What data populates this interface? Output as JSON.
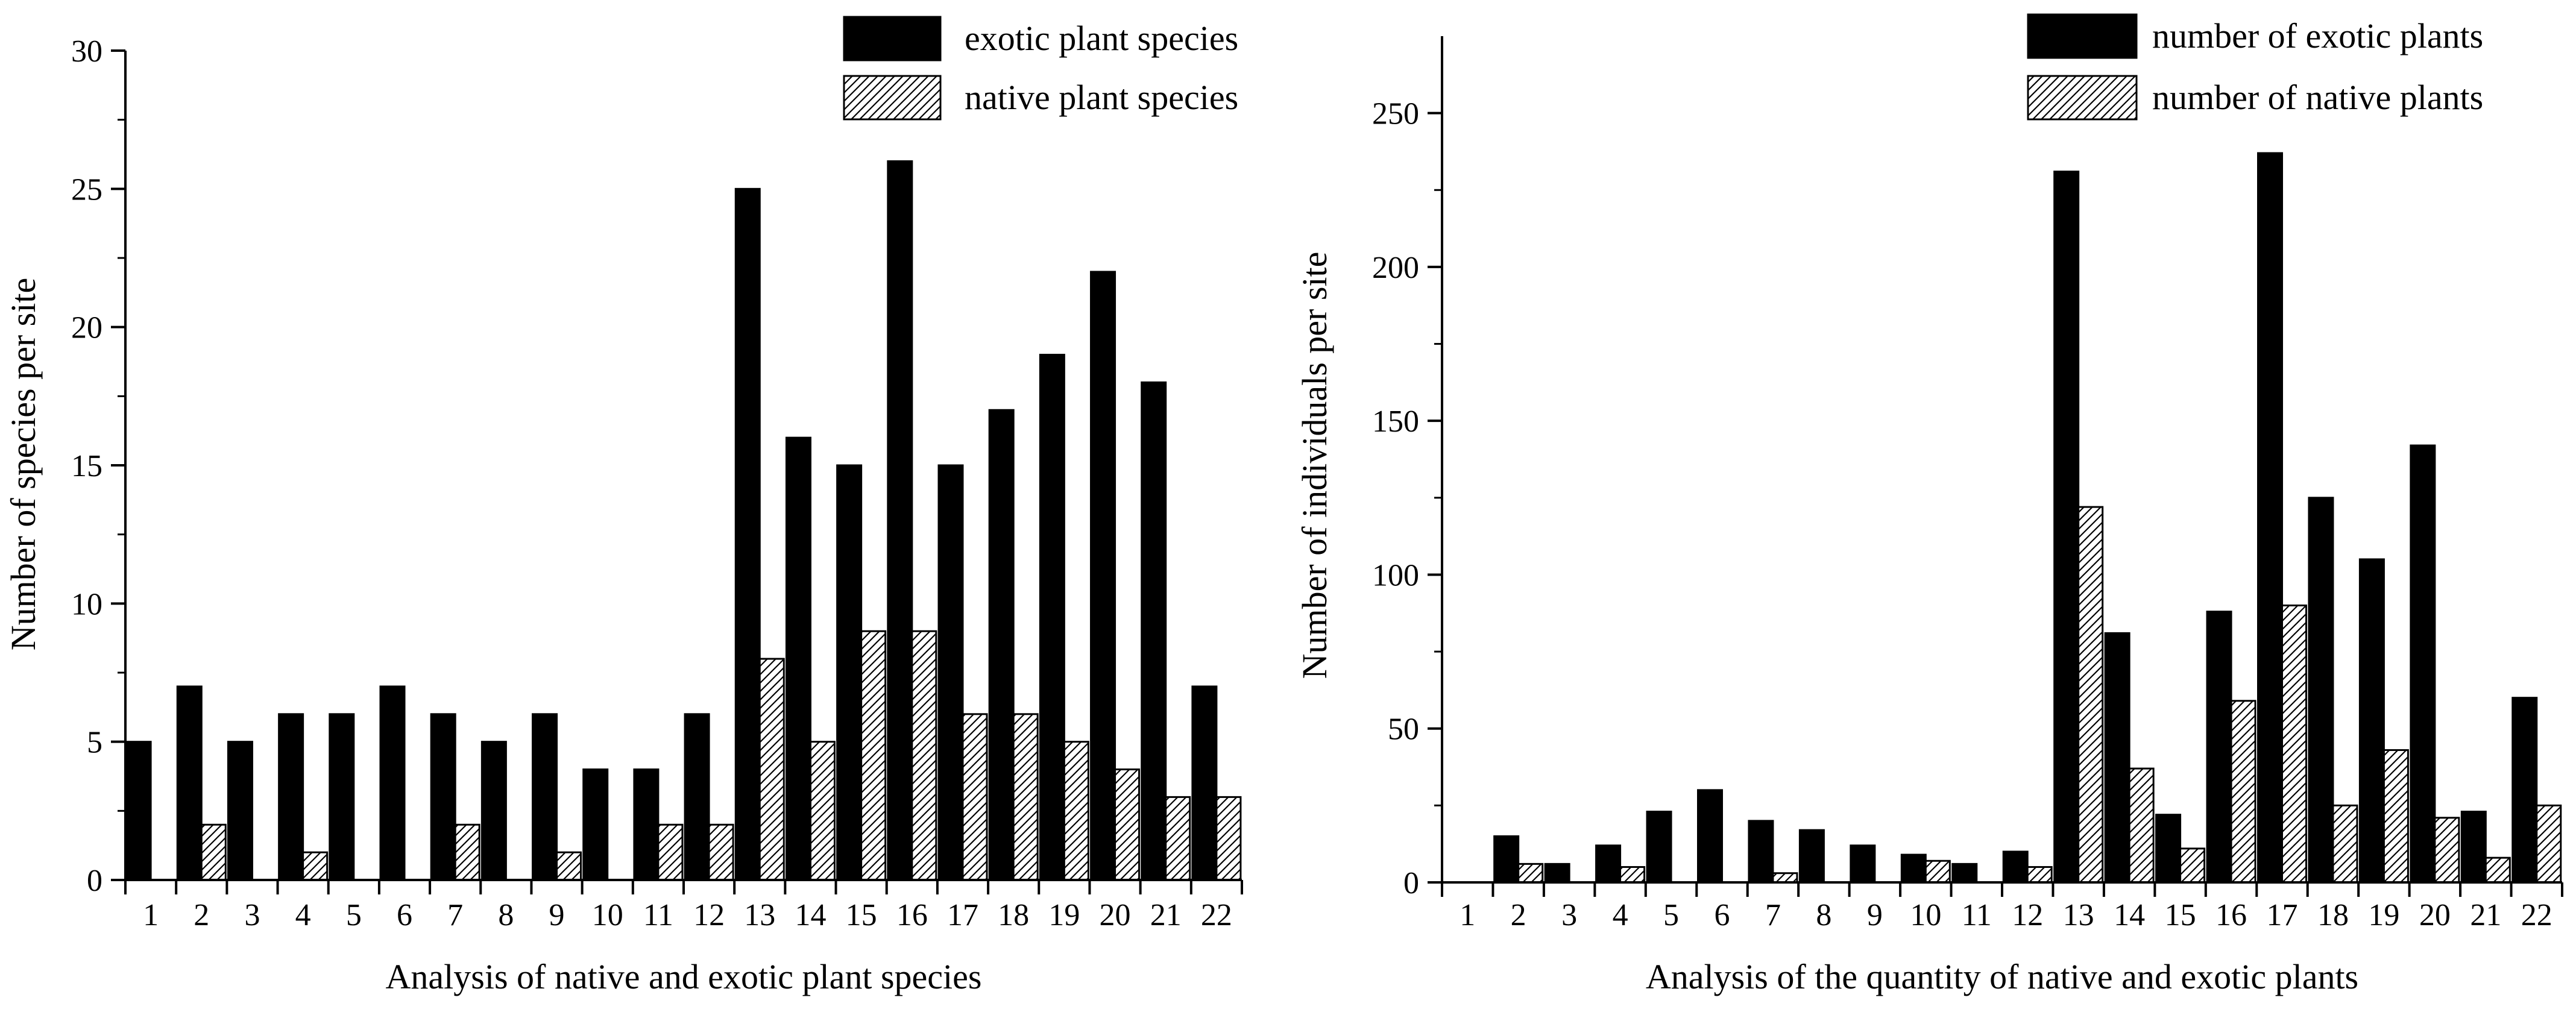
{
  "chart_data": [
    {
      "type": "bar",
      "title": "",
      "xlabel": "Analysis of native and exotic plant species",
      "ylabel": "Number of species per site",
      "ylim": [
        0,
        30
      ],
      "yticks": [
        0,
        5,
        10,
        15,
        20,
        25,
        30
      ],
      "categories": [
        "1",
        "2",
        "3",
        "4",
        "5",
        "6",
        "7",
        "8",
        "9",
        "10",
        "11",
        "12",
        "13",
        "14",
        "15",
        "16",
        "17",
        "18",
        "19",
        "20",
        "21",
        "22"
      ],
      "series": [
        {
          "name": "exotic plant species",
          "pattern": "solid",
          "values": [
            5,
            7,
            5,
            6,
            6,
            7,
            6,
            5,
            6,
            4,
            4,
            6,
            25,
            16,
            15,
            26,
            15,
            17,
            19,
            22,
            18,
            7
          ]
        },
        {
          "name": "native plant species",
          "pattern": "hatched",
          "values": [
            0,
            2,
            0,
            1,
            0,
            0,
            2,
            0,
            1,
            0,
            2,
            2,
            8,
            5,
            9,
            9,
            6,
            6,
            5,
            4,
            3,
            3
          ]
        }
      ],
      "legend": "top-right",
      "grid": false
    },
    {
      "type": "bar",
      "title": "",
      "xlabel": "Analysis of the quantity of native and exotic plants",
      "ylabel": "Number of individuals per site",
      "ylim": [
        0,
        275
      ],
      "yticks": [
        0,
        50,
        100,
        150,
        200,
        250
      ],
      "categories": [
        "1",
        "2",
        "3",
        "4",
        "5",
        "6",
        "7",
        "8",
        "9",
        "10",
        "11",
        "12",
        "13",
        "14",
        "15",
        "16",
        "17",
        "18",
        "19",
        "20",
        "21",
        "22"
      ],
      "series": [
        {
          "name": "number of exotic plants",
          "pattern": "solid",
          "values": [
            0,
            15,
            6,
            12,
            23,
            30,
            20,
            17,
            12,
            9,
            6,
            10,
            231,
            81,
            22,
            88,
            237,
            125,
            105,
            142,
            23,
            60
          ]
        },
        {
          "name": "number of native plants",
          "pattern": "hatched",
          "values": [
            0,
            6,
            0,
            5,
            0,
            0,
            3,
            0,
            0,
            7,
            0,
            5,
            122,
            37,
            11,
            59,
            90,
            25,
            43,
            21,
            8,
            25
          ]
        }
      ],
      "legend": "top-right",
      "grid": false
    }
  ],
  "colors": {
    "exotic": "#000000",
    "native_fill": "#ffffff",
    "hatch": "#000000",
    "axis": "#000000"
  }
}
